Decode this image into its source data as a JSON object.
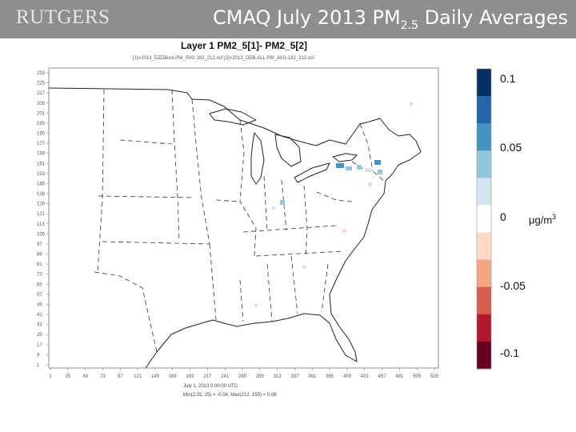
{
  "header": {
    "logo_text": "RUTGERS",
    "title_main": "CMAQ July 2013 PM",
    "title_subscript": "2.5",
    "title_suffix": " Daily Averages"
  },
  "plot": {
    "title": "Layer 1 PM2_5[1]- PM2_5[2]",
    "subtitle": "[1]=2013_DZDBoot.PM_AVG 182_212.ncf [2]=2013_DDB.ALL.PM_AVG.182_212.ncf",
    "y_ticks": [
      "233",
      "225",
      "217",
      "209",
      "201",
      "193",
      "185",
      "177",
      "169",
      "161",
      "153",
      "145",
      "138",
      "129",
      "121",
      "113",
      "105",
      "97",
      "89",
      "81",
      "73",
      "65",
      "57",
      "49",
      "41",
      "33",
      "25",
      "17",
      "9",
      "1"
    ],
    "x_ticks": [
      "1",
      "25",
      "49",
      "73",
      "97",
      "121",
      "145",
      "169",
      "193",
      "217",
      "241",
      "265",
      "289",
      "313",
      "337",
      "361",
      "385",
      "409",
      "433",
      "457",
      "481",
      "505",
      "529"
    ],
    "footer_1": "July 1, 2013 0:00:00 UTC",
    "footer_2": "Min(2.25, 25) = -0.04, Max(212, 159) = 0.08"
  },
  "colorbar": {
    "labels": [
      "0.1",
      "0.05",
      "0",
      "-0.05",
      "-0.1"
    ],
    "unit_main": "μg/m",
    "unit_sup": "3",
    "colors": [
      "#053061",
      "#2166ac",
      "#4393c3",
      "#92c5de",
      "#d1e5f0",
      "#ffffff",
      "#fddbc7",
      "#f4a582",
      "#d6604d",
      "#b2182b",
      "#67001f"
    ]
  }
}
